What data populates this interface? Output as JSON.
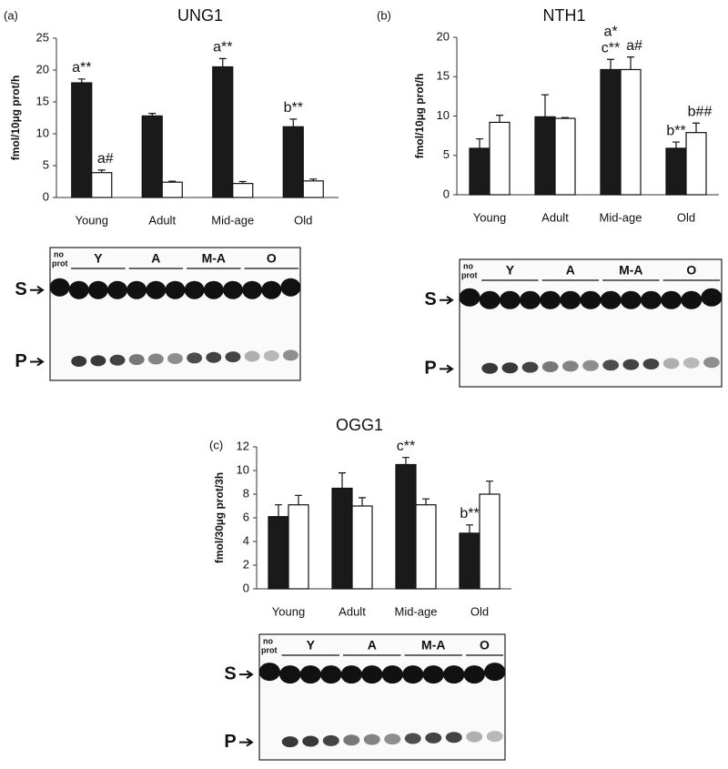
{
  "chart_data": [
    {
      "type": "bar",
      "panel_label": "(a)",
      "title": "UNG1",
      "y_label": "fmol/10µg prot/h",
      "categories": [
        "Young",
        "Adult",
        "Mid-age",
        "Old"
      ],
      "ylim": [
        0,
        25
      ],
      "yticks": [
        0,
        5,
        10,
        15,
        20,
        25
      ],
      "series": [
        {
          "color": "#1a1a1a",
          "values": [
            18,
            12.8,
            20.5,
            11.1
          ],
          "errors": [
            0.6,
            0.4,
            1.3,
            1.2
          ],
          "annotations": [
            "a**",
            null,
            "a**",
            "b**"
          ]
        },
        {
          "color": "#ffffff",
          "values": [
            3.9,
            2.4,
            2.2,
            2.6
          ],
          "errors": [
            0.4,
            0.15,
            0.3,
            0.3
          ],
          "annotations": [
            "a#",
            null,
            null,
            null
          ]
        }
      ],
      "gel": {
        "no_prot": [
          "no",
          "prot"
        ],
        "lanes": [
          "Y",
          "A",
          "M-A",
          "O"
        ],
        "substrate": "S",
        "product": "P"
      }
    },
    {
      "type": "bar",
      "panel_label": "(b)",
      "title": "NTH1",
      "y_label": "fmol/10µg prot/h",
      "categories": [
        "Young",
        "Adult",
        "Mid-age",
        "Old"
      ],
      "ylim": [
        0,
        20
      ],
      "yticks": [
        0,
        5,
        10,
        15,
        20
      ],
      "series": [
        {
          "color": "#1a1a1a",
          "values": [
            5.9,
            9.9,
            15.9,
            5.9
          ],
          "errors": [
            1.2,
            2.8,
            1.3,
            0.8
          ],
          "annotations": [
            null,
            null,
            [
              "a*",
              "c**"
            ],
            "b**"
          ]
        },
        {
          "color": "#ffffff",
          "values": [
            9.2,
            9.7,
            15.9,
            7.9
          ],
          "errors": [
            0.9,
            0.1,
            1.6,
            1.2
          ],
          "annotations": [
            null,
            null,
            "a#",
            "b##"
          ]
        }
      ],
      "gel": {
        "no_prot": [
          "no",
          "prot"
        ],
        "lanes": [
          "Y",
          "A",
          "M-A",
          "O"
        ],
        "substrate": "S",
        "product": "P"
      }
    },
    {
      "type": "bar",
      "panel_label": "(c)",
      "title": "OGG1",
      "y_label": "fmol/30µg prot/3h",
      "categories": [
        "Young",
        "Adult",
        "Mid-age",
        "Old"
      ],
      "ylim": [
        0,
        12
      ],
      "yticks": [
        0,
        2,
        4,
        6,
        8,
        10,
        12
      ],
      "series": [
        {
          "color": "#1a1a1a",
          "values": [
            6.1,
            8.5,
            10.5,
            4.7
          ],
          "errors": [
            1.0,
            1.3,
            0.6,
            0.7
          ],
          "annotations": [
            null,
            null,
            "c**",
            "b**"
          ]
        },
        {
          "color": "#ffffff",
          "values": [
            7.1,
            7.0,
            7.1,
            8.0
          ],
          "errors": [
            0.8,
            0.7,
            0.5,
            1.1
          ],
          "annotations": [
            null,
            null,
            null,
            null
          ]
        }
      ],
      "gel": {
        "no_prot": [
          "no",
          "prot"
        ],
        "lanes": [
          "Y",
          "A",
          "M-A",
          "O"
        ],
        "substrate": "S",
        "product": "P"
      }
    }
  ]
}
